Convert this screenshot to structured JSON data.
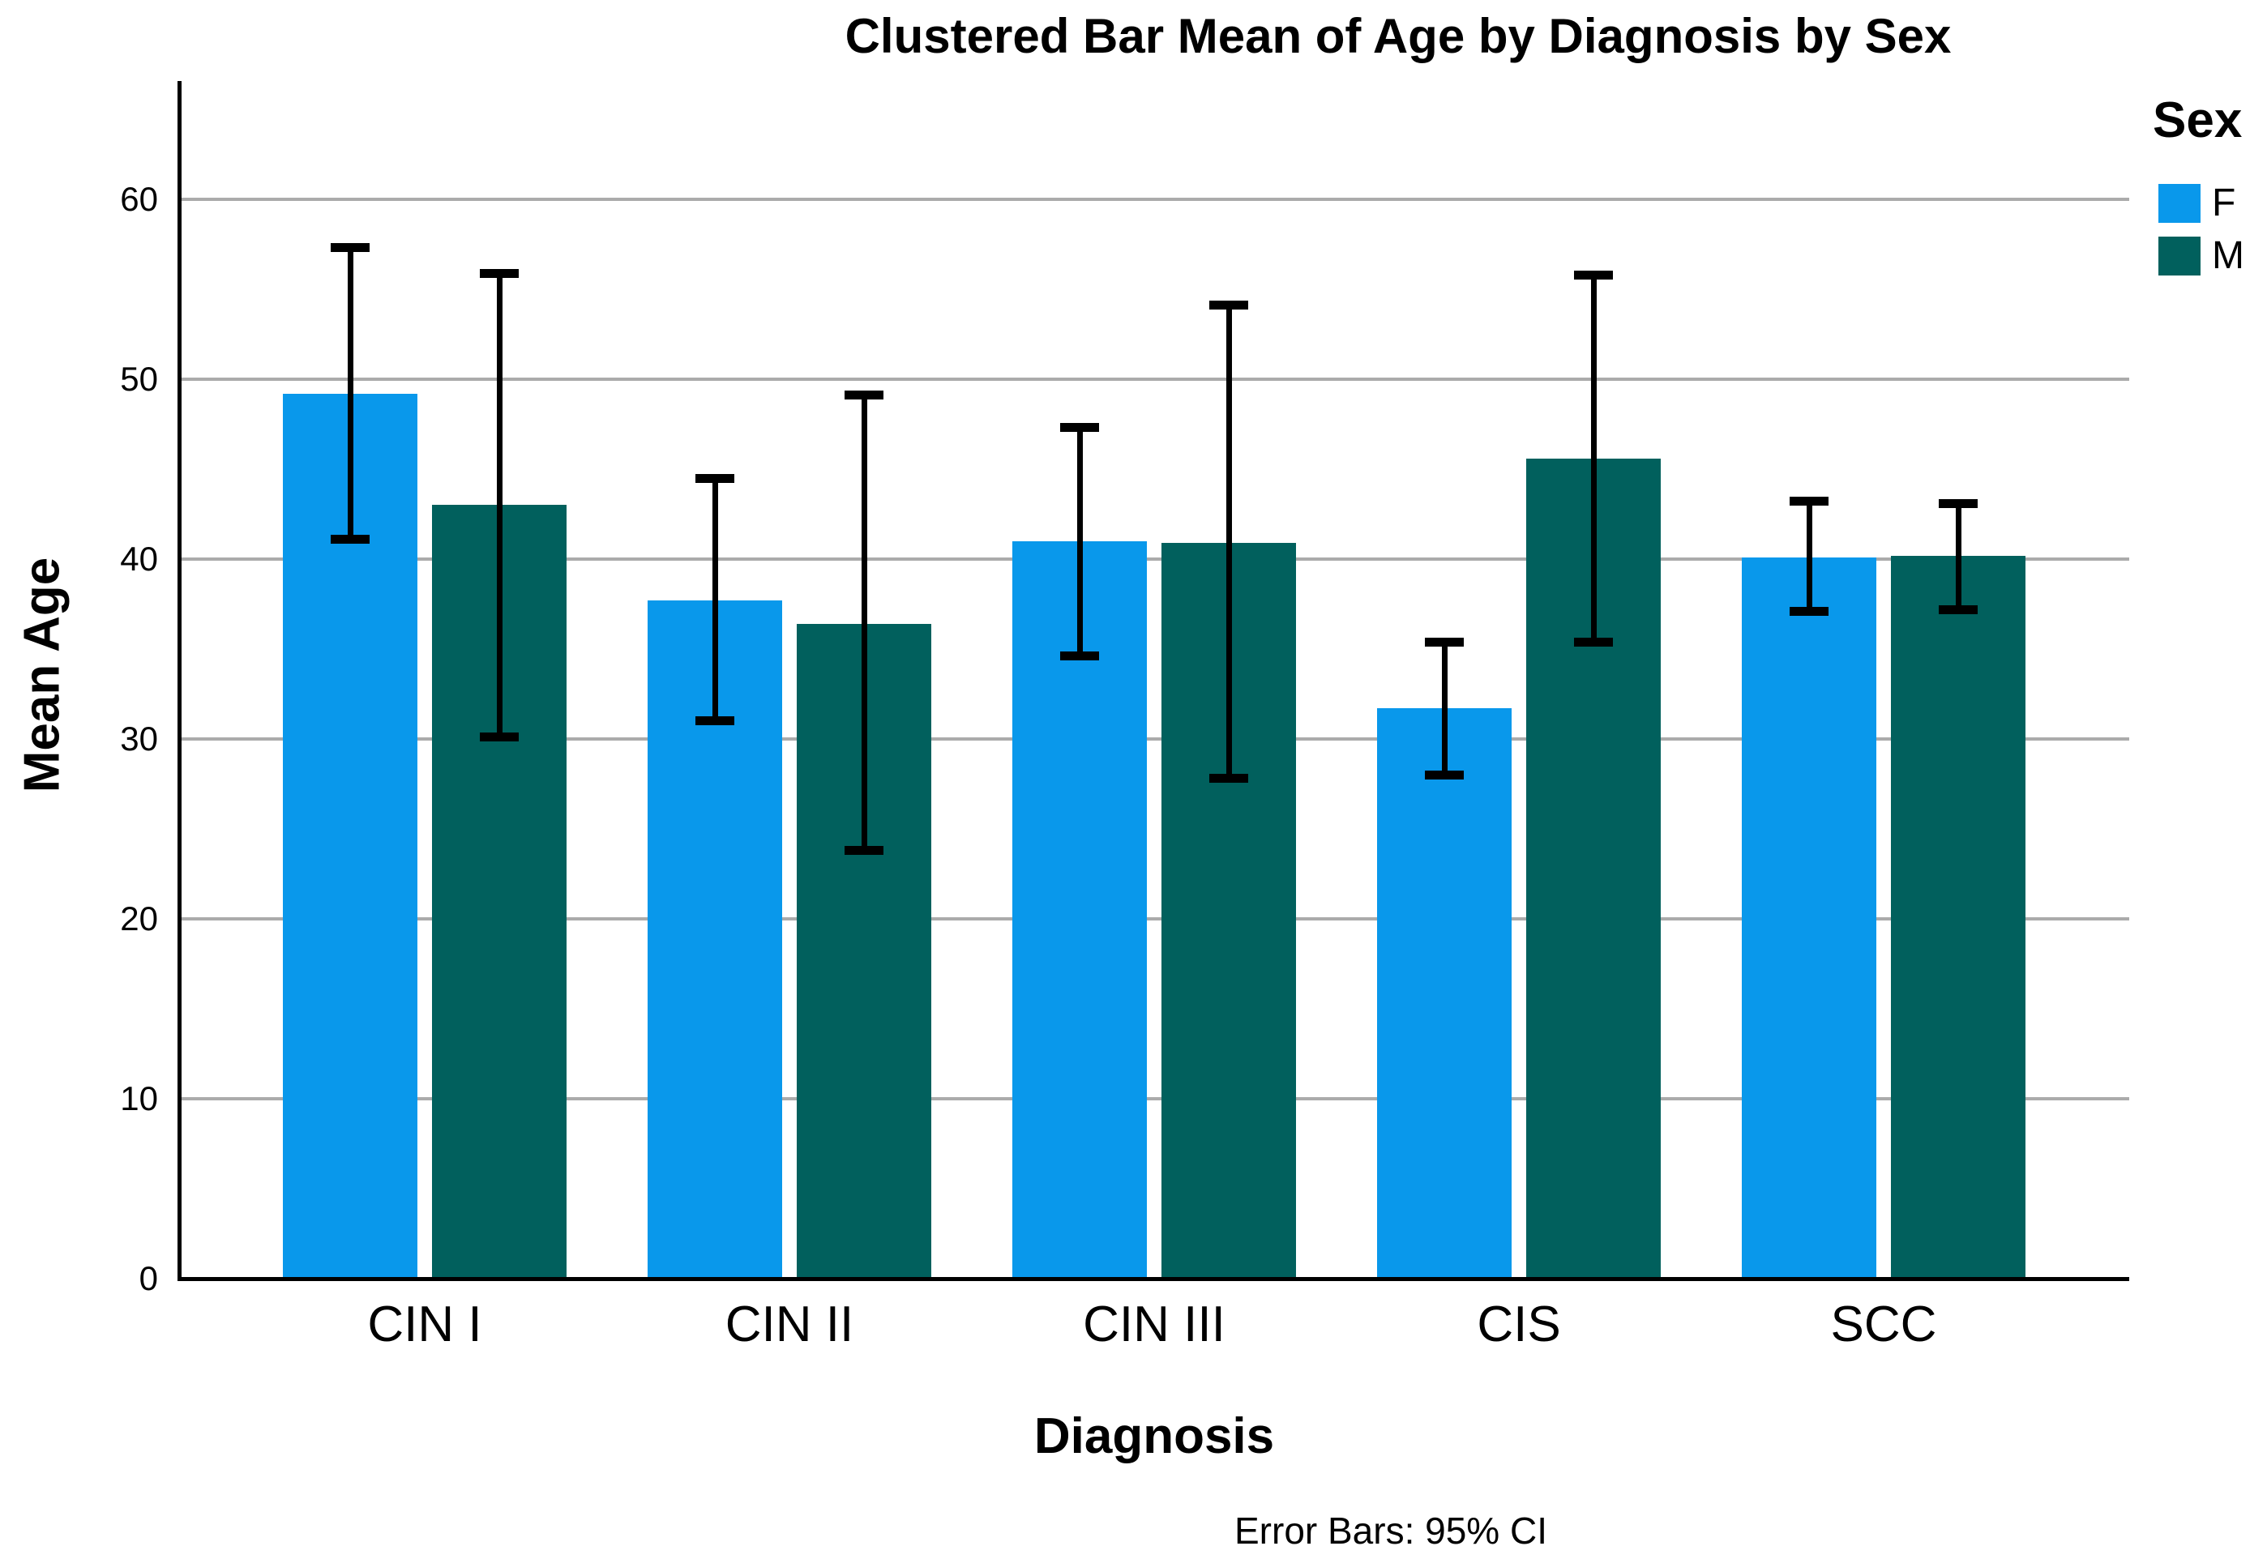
{
  "chart_data": {
    "type": "bar",
    "title": "Clustered Bar Mean of Age by Diagnosis by Sex",
    "xlabel": "Diagnosis",
    "ylabel": "Mean Age",
    "footnote": "Error Bars: 95% CI",
    "legend_title": "Sex",
    "legend_position": "right",
    "grid": true,
    "categories": [
      "CIN I",
      "CIN II",
      "CIN III",
      "CIS",
      "SCC"
    ],
    "y_ticks": [
      0,
      10,
      20,
      30,
      40,
      50,
      60
    ],
    "ylim": [
      0,
      66.5
    ],
    "error_bars": "95% CI",
    "series": [
      {
        "name": "F",
        "color": "#0998EB",
        "values": [
          49.2,
          37.7,
          41.0,
          31.7,
          40.1
        ],
        "ci_low": [
          41.1,
          31.0,
          34.6,
          28.0,
          37.1
        ],
        "ci_high": [
          57.3,
          44.5,
          47.3,
          35.4,
          43.2
        ]
      },
      {
        "name": "M",
        "color": "#01605D",
        "values": [
          43.0,
          36.4,
          40.9,
          45.6,
          40.2
        ],
        "ci_low": [
          30.1,
          23.8,
          27.8,
          35.4,
          37.2
        ],
        "ci_high": [
          55.9,
          49.1,
          54.1,
          55.8,
          43.1
        ]
      }
    ],
    "colors": {
      "gridline": "#ababab",
      "axis": "#000000",
      "background": "#ffffff",
      "text": "#000000"
    }
  }
}
